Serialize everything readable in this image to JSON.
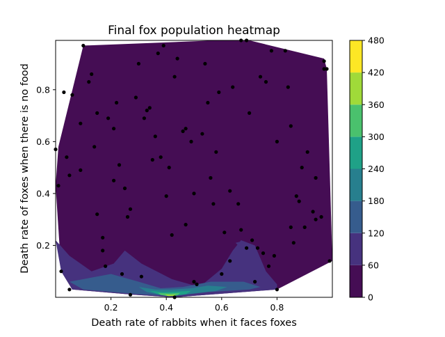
{
  "chart_data": {
    "type": "heatmap",
    "title": "Final fox population heatmap",
    "xlabel": "Death rate of rabbits when it faces foxes",
    "ylabel": "Death rate of foxes when there is no food",
    "xlim": [
      0.0,
      1.0
    ],
    "ylim": [
      0.0,
      0.99
    ],
    "x_ticks": [
      0.2,
      0.4,
      0.6,
      0.8
    ],
    "y_ticks": [
      0.2,
      0.4,
      0.6,
      0.8
    ],
    "colorbar": {
      "levels": [
        0,
        60,
        120,
        180,
        240,
        300,
        360,
        420,
        480
      ],
      "colors": [
        "#450d54",
        "#46327e",
        "#365c8d",
        "#277f8e",
        "#1fa187",
        "#4ac16d",
        "#a0da39",
        "#fde725"
      ],
      "tick_labels": [
        "0",
        "60",
        "120",
        "180",
        "240",
        "300",
        "360",
        "420",
        "480"
      ]
    },
    "hull": [
      [
        0.01,
        0.58
      ],
      [
        0.1,
        0.97
      ],
      [
        0.58,
        0.99
      ],
      [
        0.7,
        0.99
      ],
      [
        0.97,
        0.92
      ],
      [
        0.98,
        0.88
      ],
      [
        1.0,
        0.14
      ],
      [
        0.8,
        0.03
      ],
      [
        0.43,
        0.0
      ],
      [
        0.28,
        0.01
      ],
      [
        0.06,
        0.03
      ],
      [
        0.02,
        0.1
      ],
      [
        0.0,
        0.43
      ]
    ],
    "regions": [
      {
        "level": 60,
        "points": [
          [
            0.0,
            0.22
          ],
          [
            0.05,
            0.16
          ],
          [
            0.13,
            0.1
          ],
          [
            0.21,
            0.13
          ],
          [
            0.25,
            0.18
          ],
          [
            0.31,
            0.13
          ],
          [
            0.42,
            0.07
          ],
          [
            0.52,
            0.04
          ],
          [
            0.6,
            0.11
          ],
          [
            0.64,
            0.18
          ],
          [
            0.67,
            0.22
          ],
          [
            0.72,
            0.2
          ],
          [
            0.76,
            0.1
          ],
          [
            0.8,
            0.05
          ],
          [
            0.8,
            0.03
          ],
          [
            0.43,
            0.0
          ],
          [
            0.28,
            0.01
          ],
          [
            0.06,
            0.03
          ],
          [
            0.02,
            0.1
          ]
        ]
      },
      {
        "level": 120,
        "points": [
          [
            0.05,
            0.06
          ],
          [
            0.2,
            0.09
          ],
          [
            0.3,
            0.06
          ],
          [
            0.38,
            0.035
          ],
          [
            0.46,
            0.04
          ],
          [
            0.56,
            0.06
          ],
          [
            0.68,
            0.06
          ],
          [
            0.74,
            0.04
          ],
          [
            0.7,
            0.03
          ],
          [
            0.55,
            0.02
          ],
          [
            0.43,
            0.005
          ],
          [
            0.3,
            0.012
          ],
          [
            0.1,
            0.03
          ]
        ]
      },
      {
        "level": 180,
        "points": [
          [
            0.3,
            0.04
          ],
          [
            0.36,
            0.03
          ],
          [
            0.42,
            0.03
          ],
          [
            0.49,
            0.035
          ],
          [
            0.55,
            0.045
          ],
          [
            0.62,
            0.04
          ],
          [
            0.58,
            0.025
          ],
          [
            0.46,
            0.01
          ],
          [
            0.4,
            0.005
          ],
          [
            0.33,
            0.02
          ]
        ]
      },
      {
        "level": 240,
        "points": [
          [
            0.34,
            0.025
          ],
          [
            0.39,
            0.02
          ],
          [
            0.44,
            0.022
          ],
          [
            0.49,
            0.025
          ],
          [
            0.47,
            0.012
          ],
          [
            0.42,
            0.005
          ],
          [
            0.37,
            0.012
          ]
        ]
      },
      {
        "level": 300,
        "points": [
          [
            0.37,
            0.017
          ],
          [
            0.41,
            0.015
          ],
          [
            0.45,
            0.017
          ],
          [
            0.44,
            0.008
          ],
          [
            0.41,
            0.004
          ],
          [
            0.38,
            0.009
          ]
        ]
      },
      {
        "level": 360,
        "points": [
          [
            0.395,
            0.011
          ],
          [
            0.42,
            0.01
          ],
          [
            0.435,
            0.011
          ],
          [
            0.425,
            0.005
          ],
          [
            0.405,
            0.005
          ]
        ]
      },
      {
        "level": 60,
        "points": [
          [
            0.65,
            0.21
          ],
          [
            0.67,
            0.19
          ],
          [
            0.685,
            0.2
          ],
          [
            0.67,
            0.215
          ]
        ]
      }
    ],
    "points": [
      [
        0.1,
        0.97
      ],
      [
        0.39,
        0.97
      ],
      [
        0.67,
        0.99
      ],
      [
        0.69,
        0.99
      ],
      [
        0.83,
        0.95
      ],
      [
        0.97,
        0.91
      ],
      [
        0.97,
        0.88
      ],
      [
        0.98,
        0.88
      ],
      [
        0.37,
        0.94
      ],
      [
        0.44,
        0.92
      ],
      [
        0.3,
        0.9
      ],
      [
        0.54,
        0.9
      ],
      [
        0.78,
        0.95
      ],
      [
        0.12,
        0.83
      ],
      [
        0.13,
        0.86
      ],
      [
        0.43,
        0.85
      ],
      [
        0.74,
        0.85
      ],
      [
        0.76,
        0.83
      ],
      [
        0.03,
        0.79
      ],
      [
        0.06,
        0.78
      ],
      [
        0.59,
        0.79
      ],
      [
        0.64,
        0.81
      ],
      [
        0.84,
        0.81
      ],
      [
        0.29,
        0.77
      ],
      [
        0.22,
        0.75
      ],
      [
        0.34,
        0.73
      ],
      [
        0.33,
        0.72
      ],
      [
        0.55,
        0.75
      ],
      [
        0.15,
        0.71
      ],
      [
        0.32,
        0.69
      ],
      [
        0.7,
        0.71
      ],
      [
        0.09,
        0.67
      ],
      [
        0.19,
        0.69
      ],
      [
        0.21,
        0.65
      ],
      [
        0.85,
        0.66
      ],
      [
        0.46,
        0.64
      ],
      [
        0.47,
        0.65
      ],
      [
        0.53,
        0.63
      ],
      [
        0.36,
        0.62
      ],
      [
        0.49,
        0.6
      ],
      [
        0.8,
        0.6
      ],
      [
        0.0,
        0.57
      ],
      [
        0.14,
        0.58
      ],
      [
        0.58,
        0.56
      ],
      [
        0.91,
        0.56
      ],
      [
        0.04,
        0.54
      ],
      [
        0.38,
        0.54
      ],
      [
        0.35,
        0.53
      ],
      [
        0.23,
        0.51
      ],
      [
        0.41,
        0.5
      ],
      [
        0.09,
        0.49
      ],
      [
        0.89,
        0.5
      ],
      [
        0.05,
        0.47
      ],
      [
        0.21,
        0.45
      ],
      [
        0.56,
        0.46
      ],
      [
        0.94,
        0.46
      ],
      [
        0.25,
        0.42
      ],
      [
        0.01,
        0.43
      ],
      [
        0.63,
        0.41
      ],
      [
        0.5,
        0.4
      ],
      [
        0.4,
        0.39
      ],
      [
        0.87,
        0.39
      ],
      [
        0.88,
        0.37
      ],
      [
        0.66,
        0.36
      ],
      [
        0.57,
        0.36
      ],
      [
        0.27,
        0.34
      ],
      [
        0.15,
        0.32
      ],
      [
        0.93,
        0.33
      ],
      [
        0.94,
        0.3
      ],
      [
        0.26,
        0.31
      ],
      [
        0.96,
        0.31
      ],
      [
        0.47,
        0.28
      ],
      [
        0.85,
        0.27
      ],
      [
        0.9,
        0.27
      ],
      [
        0.61,
        0.25
      ],
      [
        0.67,
        0.26
      ],
      [
        0.42,
        0.24
      ],
      [
        0.17,
        0.23
      ],
      [
        0.71,
        0.22
      ],
      [
        0.86,
        0.21
      ],
      [
        0.69,
        0.19
      ],
      [
        0.73,
        0.19
      ],
      [
        0.17,
        0.18
      ],
      [
        0.75,
        0.17
      ],
      [
        0.79,
        0.16
      ],
      [
        0.63,
        0.14
      ],
      [
        0.99,
        0.14
      ],
      [
        0.18,
        0.12
      ],
      [
        0.77,
        0.12
      ],
      [
        0.02,
        0.1
      ],
      [
        0.24,
        0.09
      ],
      [
        0.6,
        0.09
      ],
      [
        0.31,
        0.08
      ],
      [
        0.5,
        0.06
      ],
      [
        0.51,
        0.05
      ],
      [
        0.72,
        0.06
      ],
      [
        0.05,
        0.03
      ],
      [
        0.8,
        0.03
      ],
      [
        0.27,
        0.01
      ],
      [
        0.43,
        0.0
      ]
    ]
  }
}
